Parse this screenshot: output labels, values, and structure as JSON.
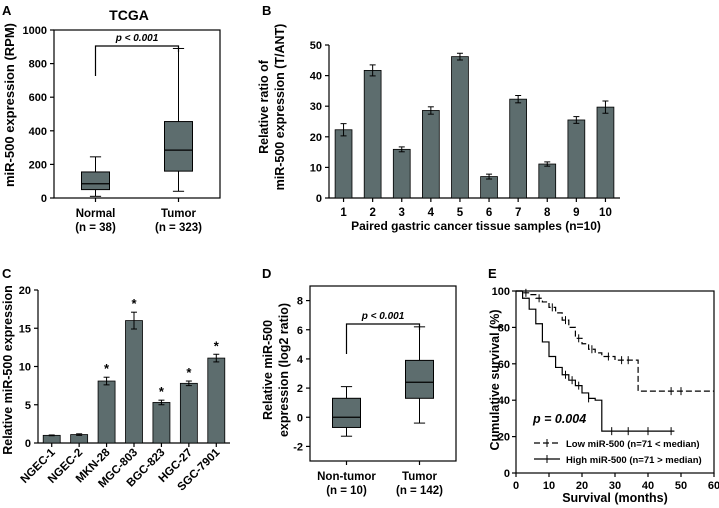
{
  "chart_data": [
    {
      "panel": "A",
      "type": "box",
      "title": "TCGA",
      "ylabel": "miR-500 expression (RPM)",
      "ylim": [
        0,
        1000
      ],
      "yticks": [
        0,
        200,
        400,
        600,
        800,
        1000
      ],
      "annotation": "p < 0.001",
      "groups": [
        {
          "label": "Normal",
          "n_label": "(n = 38)",
          "min": 10,
          "q1": 50,
          "median": 85,
          "q3": 155,
          "max": 245
        },
        {
          "label": "Tumor",
          "n_label": "(n = 323)",
          "min": 40,
          "q1": 160,
          "median": 285,
          "q3": 455,
          "max": 890
        }
      ]
    },
    {
      "panel": "B",
      "type": "bar",
      "ylabel_lines": [
        "Relative ratio of",
        "miR-500 expression (T/ANT)"
      ],
      "xlabel": "Paired gastric cancer tissue samples (n=10)",
      "ylim": [
        0,
        50
      ],
      "yticks": [
        0,
        10,
        20,
        30,
        40,
        50
      ],
      "categories": [
        "1",
        "2",
        "3",
        "4",
        "5",
        "6",
        "7",
        "8",
        "9",
        "10"
      ],
      "values": [
        22.3,
        41.7,
        15.9,
        28.6,
        46.2,
        7.0,
        32.3,
        11.1,
        25.5,
        29.7
      ],
      "errors": [
        2.0,
        1.8,
        0.8,
        1.2,
        1.1,
        0.8,
        1.2,
        0.7,
        1.1,
        2.0
      ]
    },
    {
      "panel": "C",
      "type": "bar",
      "ylabel": "Relative miR-500 expression",
      "ylim": [
        0,
        20
      ],
      "yticks": [
        0,
        5,
        10,
        15,
        20
      ],
      "categories": [
        "NGEC-1",
        "NGEC-2",
        "MKN-28",
        "MGC-803",
        "BGC-823",
        "HGC-27",
        "SGC-7901"
      ],
      "values": [
        1.0,
        1.1,
        8.1,
        16.0,
        5.3,
        7.8,
        11.1
      ],
      "errors": [
        0.05,
        0.1,
        0.5,
        1.1,
        0.3,
        0.3,
        0.5
      ],
      "significant": [
        false,
        false,
        true,
        true,
        true,
        true,
        true
      ],
      "sig_mark": "*"
    },
    {
      "panel": "D",
      "type": "box",
      "ylabel_lines": [
        "Relative miR-500",
        "expression (log2 ratio)"
      ],
      "ylim": [
        -3,
        9
      ],
      "yticks": [
        -2,
        0,
        2,
        4,
        6,
        8
      ],
      "annotation": "p < 0.001",
      "groups": [
        {
          "label": "Non-tumor",
          "n_label": "(n = 10)",
          "min": -1.3,
          "q1": -0.7,
          "median": 0.0,
          "q3": 1.3,
          "max": 2.1
        },
        {
          "label": "Tumor",
          "n_label": "(n = 142)",
          "min": -0.4,
          "q1": 1.3,
          "median": 2.4,
          "q3": 3.9,
          "max": 6.2
        }
      ]
    },
    {
      "panel": "E",
      "type": "line",
      "ylabel": "Cumulative survival (%)",
      "xlabel": "Survival (months)",
      "xlim": [
        0,
        60
      ],
      "ylim": [
        0,
        100
      ],
      "xticks": [
        0,
        10,
        20,
        30,
        40,
        50,
        60
      ],
      "yticks": [
        0,
        20,
        40,
        60,
        80,
        100
      ],
      "annotation": "p = 0.004",
      "series": [
        {
          "name": "Low miR-500 (n=71 < median)",
          "style": "dashed",
          "x": [
            0,
            2,
            4,
            6,
            8,
            10,
            12,
            14,
            16,
            18,
            20,
            22,
            24,
            26,
            30,
            36,
            37,
            40,
            50,
            60
          ],
          "y": [
            100,
            99,
            98,
            96,
            94,
            91,
            88,
            84,
            80,
            74,
            71,
            68,
            66,
            64,
            62,
            62,
            45,
            45,
            45,
            45
          ],
          "censor_x": [
            3,
            7,
            11,
            15,
            19,
            23,
            28,
            32,
            34,
            47,
            50
          ]
        },
        {
          "name": "High miR-500 (n=71 > median)",
          "style": "solid",
          "x": [
            0,
            2,
            4,
            6,
            8,
            10,
            12,
            14,
            16,
            18,
            20,
            22,
            24,
            26,
            30,
            40,
            48
          ],
          "y": [
            100,
            96,
            90,
            82,
            72,
            64,
            58,
            54,
            51,
            48,
            44,
            41,
            40,
            23,
            23,
            23,
            23
          ],
          "censor_x": [
            15,
            17,
            19,
            22,
            29,
            34,
            40,
            47
          ]
        }
      ]
    }
  ]
}
